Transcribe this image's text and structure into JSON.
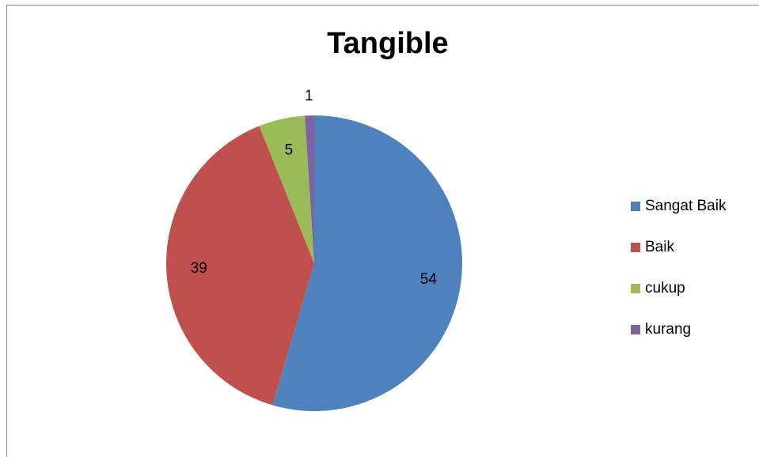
{
  "chart_data": {
    "type": "pie",
    "title": "Tangible",
    "categories": [
      "Sangat Baik",
      "Baik",
      "cukup",
      "kurang"
    ],
    "values": [
      54,
      39,
      5,
      1
    ],
    "data_labels": [
      "54",
      "39",
      "5",
      "1"
    ],
    "colors": [
      "#4F81BD",
      "#C0504D",
      "#9BBB59",
      "#8064A2"
    ],
    "legend_position": "right"
  }
}
